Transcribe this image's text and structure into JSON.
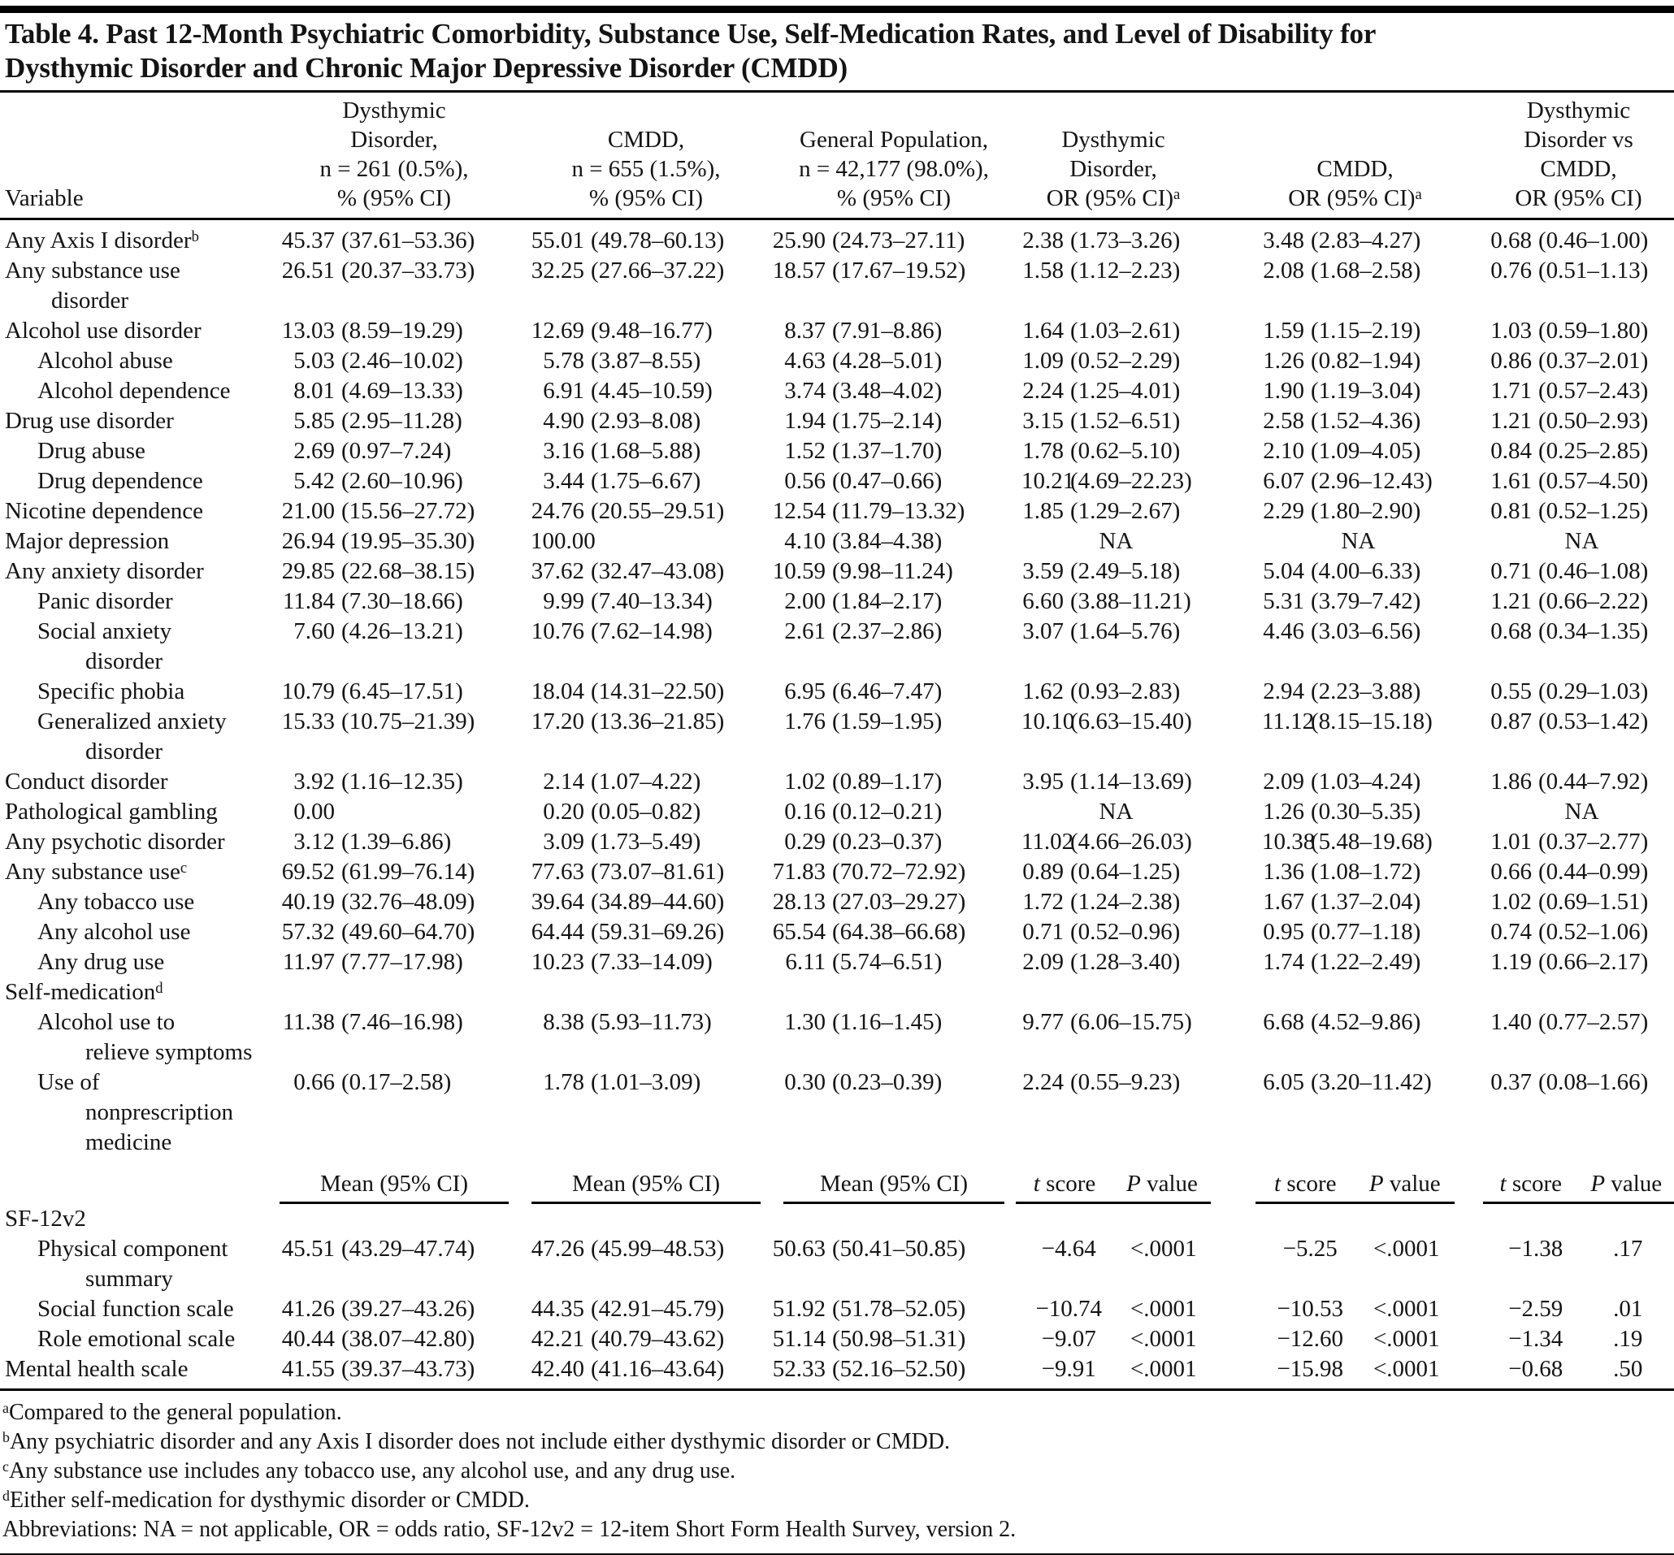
{
  "title": "Table 4. Past 12-Month Psychiatric Comorbidity, Substance Use, Self-Medication Rates, and Level of Disability for\nDysthymic Disorder and Chronic Major Depressive Disorder (CMDD)",
  "colors": {
    "ink": "#141414",
    "rule": "#000000",
    "background": "#ffffff"
  },
  "header": {
    "variable_label": "Variable",
    "cols": [
      {
        "id": "dysthymic-pct",
        "lines": [
          "Dysthymic",
          "Disorder,",
          "n = 261 (0.5%),",
          "% (95% CI)"
        ],
        "sup": null
      },
      {
        "id": "cmdd-pct",
        "lines": [
          "CMDD,",
          "n = 655 (1.5%),",
          "% (95% CI)"
        ],
        "sup": null
      },
      {
        "id": "general-population-pct",
        "lines": [
          "General Population,",
          "n = 42,177 (98.0%),",
          "% (95% CI)"
        ],
        "sup": null
      },
      {
        "id": "dysthymic-or",
        "lines": [
          "Dysthymic",
          "Disorder,",
          "OR (95% CI)"
        ],
        "sup": "a"
      },
      {
        "id": "cmdd-or",
        "lines": [
          "CMDD,",
          "OR (95% CI)"
        ],
        "sup": "a"
      },
      {
        "id": "dysthymic-vs-cmdd-or",
        "lines": [
          "Dysthymic",
          "Disorder vs",
          "CMDD,",
          "OR (95% CI)"
        ],
        "sup": null
      }
    ]
  },
  "rows": [
    {
      "label": "Any Axis I disorder",
      "sup": "b",
      "indent": 0,
      "cells": [
        "45.37 (37.61–53.36)",
        "55.01 (49.78–60.13)",
        "25.90 (24.73–27.11)",
        "2.38 (1.73–3.26)",
        "3.48 (2.83–4.27)",
        "0.68 (0.46–1.00)"
      ]
    },
    {
      "label": "Any substance use\ndisorder",
      "sup": null,
      "indent": 0,
      "cells": [
        "26.51 (20.37–33.73)",
        "32.25 (27.66–37.22)",
        "18.57 (17.67–19.52)",
        "1.58 (1.12–2.23)",
        "2.08 (1.68–2.58)",
        "0.76 (0.51–1.13)"
      ]
    },
    {
      "label": "Alcohol use disorder",
      "sup": null,
      "indent": 0,
      "cells": [
        "13.03 (8.59–19.29)",
        "12.69 (9.48–16.77)",
        "8.37 (7.91–8.86)",
        "1.64 (1.03–2.61)",
        "1.59 (1.15–2.19)",
        "1.03 (0.59–1.80)"
      ]
    },
    {
      "label": "Alcohol abuse",
      "sup": null,
      "indent": 1,
      "cells": [
        "5.03 (2.46–10.02)",
        "5.78 (3.87–8.55)",
        "4.63 (4.28–5.01)",
        "1.09 (0.52–2.29)",
        "1.26 (0.82–1.94)",
        "0.86 (0.37–2.01)"
      ]
    },
    {
      "label": "Alcohol dependence",
      "sup": null,
      "indent": 1,
      "cells": [
        "8.01 (4.69–13.33)",
        "6.91 (4.45–10.59)",
        "3.74 (3.48–4.02)",
        "2.24 (1.25–4.01)",
        "1.90 (1.19–3.04)",
        "1.71 (0.57–2.43)"
      ]
    },
    {
      "label": "Drug use disorder",
      "sup": null,
      "indent": 0,
      "cells": [
        "5.85 (2.95–11.28)",
        "4.90 (2.93–8.08)",
        "1.94 (1.75–2.14)",
        "3.15 (1.52–6.51)",
        "2.58 (1.52–4.36)",
        "1.21 (0.50–2.93)"
      ]
    },
    {
      "label": "Drug abuse",
      "sup": null,
      "indent": 1,
      "cells": [
        "2.69 (0.97–7.24)",
        "3.16 (1.68–5.88)",
        "1.52 (1.37–1.70)",
        "1.78 (0.62–5.10)",
        "2.10 (1.09–4.05)",
        "0.84 (0.25–2.85)"
      ]
    },
    {
      "label": "Drug dependence",
      "sup": null,
      "indent": 1,
      "cells": [
        "5.42 (2.60–10.96)",
        "3.44 (1.75–6.67)",
        "0.56 (0.47–0.66)",
        "10.21 (4.69–22.23)",
        "6.07 (2.96–12.43)",
        "1.61 (0.57–4.50)"
      ]
    },
    {
      "label": "Nicotine dependence",
      "sup": null,
      "indent": 0,
      "cells": [
        "21.00 (15.56–27.72)",
        "24.76 (20.55–29.51)",
        "12.54 (11.79–13.32)",
        "1.85 (1.29–2.67)",
        "2.29 (1.80–2.90)",
        "0.81 (0.52–1.25)"
      ]
    },
    {
      "label": "Major depression",
      "sup": null,
      "indent": 0,
      "cells": [
        "26.94 (19.95–35.30)",
        "100.00",
        "4.10 (3.84–4.38)",
        "NA",
        "NA",
        "NA"
      ]
    },
    {
      "label": "Any anxiety disorder",
      "sup": null,
      "indent": 0,
      "cells": [
        "29.85 (22.68–38.15)",
        "37.62 (32.47–43.08)",
        "10.59 (9.98–11.24)",
        "3.59 (2.49–5.18)",
        "5.04 (4.00–6.33)",
        "0.71 (0.46–1.08)"
      ]
    },
    {
      "label": "Panic disorder",
      "sup": null,
      "indent": 1,
      "cells": [
        "11.84 (7.30–18.66)",
        "9.99 (7.40–13.34)",
        "2.00 (1.84–2.17)",
        "6.60 (3.88–11.21)",
        "5.31 (3.79–7.42)",
        "1.21 (0.66–2.22)"
      ]
    },
    {
      "label": "Social anxiety\ndisorder",
      "sup": null,
      "indent": 1,
      "cells": [
        "7.60 (4.26–13.21)",
        "10.76 (7.62–14.98)",
        "2.61 (2.37–2.86)",
        "3.07 (1.64–5.76)",
        "4.46 (3.03–6.56)",
        "0.68 (0.34–1.35)"
      ]
    },
    {
      "label": "Specific phobia",
      "sup": null,
      "indent": 1,
      "cells": [
        "10.79 (6.45–17.51)",
        "18.04 (14.31–22.50)",
        "6.95 (6.46–7.47)",
        "1.62 (0.93–2.83)",
        "2.94 (2.23–3.88)",
        "0.55 (0.29–1.03)"
      ]
    },
    {
      "label": "Generalized anxiety\ndisorder",
      "sup": null,
      "indent": 1,
      "cells": [
        "15.33 (10.75–21.39)",
        "17.20 (13.36–21.85)",
        "1.76 (1.59–1.95)",
        "10.10 (6.63–15.40)",
        "11.12 (8.15–15.18)",
        "0.87 (0.53–1.42)"
      ]
    },
    {
      "label": "Conduct disorder",
      "sup": null,
      "indent": 0,
      "cells": [
        "3.92 (1.16–12.35)",
        "2.14 (1.07–4.22)",
        "1.02 (0.89–1.17)",
        "3.95 (1.14–13.69)",
        "2.09 (1.03–4.24)",
        "1.86 (0.44–7.92)"
      ]
    },
    {
      "label": "Pathological gambling",
      "sup": null,
      "indent": 0,
      "cells": [
        "0.00",
        "0.20 (0.05–0.82)",
        "0.16 (0.12–0.21)",
        "NA",
        "1.26 (0.30–5.35)",
        "NA"
      ]
    },
    {
      "label": "Any psychotic disorder",
      "sup": null,
      "indent": 0,
      "cells": [
        "3.12 (1.39–6.86)",
        "3.09 (1.73–5.49)",
        "0.29 (0.23–0.37)",
        "11.02 (4.66–26.03)",
        "10.38 (5.48–19.68)",
        "1.01 (0.37–2.77)"
      ]
    },
    {
      "label": "Any substance use",
      "sup": "c",
      "indent": 0,
      "cells": [
        "69.52 (61.99–76.14)",
        "77.63 (73.07–81.61)",
        "71.83 (70.72–72.92)",
        "0.89 (0.64–1.25)",
        "1.36 (1.08–1.72)",
        "0.66 (0.44–0.99)"
      ]
    },
    {
      "label": "Any tobacco use",
      "sup": null,
      "indent": 1,
      "cells": [
        "40.19 (32.76–48.09)",
        "39.64 (34.89–44.60)",
        "28.13 (27.03–29.27)",
        "1.72 (1.24–2.38)",
        "1.67 (1.37–2.04)",
        "1.02 (0.69–1.51)"
      ]
    },
    {
      "label": "Any alcohol use",
      "sup": null,
      "indent": 1,
      "cells": [
        "57.32 (49.60–64.70)",
        "64.44 (59.31–69.26)",
        "65.54 (64.38–66.68)",
        "0.71 (0.52–0.96)",
        "0.95 (0.77–1.18)",
        "0.74 (0.52–1.06)"
      ]
    },
    {
      "label": "Any drug use",
      "sup": null,
      "indent": 1,
      "cells": [
        "11.97 (7.77–17.98)",
        "10.23 (7.33–14.09)",
        "6.11 (5.74–6.51)",
        "2.09 (1.28–3.40)",
        "1.74 (1.22–2.49)",
        "1.19 (0.66–2.17)"
      ]
    },
    {
      "label": "Self-medication",
      "sup": "d",
      "indent": 0,
      "cells": null
    },
    {
      "label": "Alcohol use to\nrelieve symptoms",
      "sup": null,
      "indent": 1,
      "cells": [
        "11.38 (7.46–16.98)",
        "8.38 (5.93–11.73)",
        "1.30 (1.16–1.45)",
        "9.77 (6.06–15.75)",
        "6.68 (4.52–9.86)",
        "1.40 (0.77–2.57)"
      ]
    },
    {
      "label": "Use of\nnonprescription\nmedicine",
      "sup": null,
      "indent": 1,
      "cells": [
        "0.66 (0.17–2.58)",
        "1.78 (1.01–3.09)",
        "0.30 (0.23–0.39)",
        "2.24 (0.55–9.23)",
        "6.05 (3.20–11.42)",
        "0.37 (0.08–1.66)"
      ]
    }
  ],
  "midheader": {
    "mean_label": "Mean (95% CI)",
    "t_label": "t score",
    "p_label": "P value"
  },
  "lower_rows": [
    {
      "label": "SF-12v2",
      "sup": null,
      "indent": 0,
      "cells": null
    },
    {
      "label": "Physical component\nsummary",
      "sup": null,
      "indent": 1,
      "cells": [
        "45.51 (43.29–47.74)",
        "47.26 (45.99–48.53)",
        "50.63 (50.41–50.85)",
        "−4.64",
        "<.0001",
        "−5.25",
        "<.0001",
        "−1.38",
        ".17"
      ]
    },
    {
      "label": "Social function scale",
      "sup": null,
      "indent": 1,
      "cells": [
        "41.26 (39.27–43.26)",
        "44.35 (42.91–45.79)",
        "51.92 (51.78–52.05)",
        "−10.74",
        "<.0001",
        "−10.53",
        "<.0001",
        "−2.59",
        ".01"
      ]
    },
    {
      "label": "Role emotional scale",
      "sup": null,
      "indent": 1,
      "cells": [
        "40.44 (38.07–42.80)",
        "42.21 (40.79–43.62)",
        "51.14 (50.98–51.31)",
        "−9.07",
        "<.0001",
        "−12.60",
        "<.0001",
        "−1.34",
        ".19"
      ]
    },
    {
      "label": "Mental health scale",
      "sup": null,
      "indent": 0,
      "cells": [
        "41.55 (39.37–43.73)",
        "42.40 (41.16–43.64)",
        "52.33 (52.16–52.50)",
        "−9.91",
        "<.0001",
        "−15.98",
        "<.0001",
        "−0.68",
        ".50"
      ]
    }
  ],
  "footnotes": [
    {
      "sup": "a",
      "text": "Compared to the general population."
    },
    {
      "sup": "b",
      "text": "Any psychiatric disorder and any Axis I disorder does not include either dysthymic disorder or CMDD."
    },
    {
      "sup": "c",
      "text": "Any substance use includes any tobacco use, any alcohol use, and any drug use."
    },
    {
      "sup": "d",
      "text": "Either self-medication for dysthymic disorder or CMDD."
    },
    {
      "sup": null,
      "text": "Abbreviations: NA = not applicable, OR = odds ratio, SF-12v2 = 12-item Short Form Health Survey, version 2."
    }
  ]
}
